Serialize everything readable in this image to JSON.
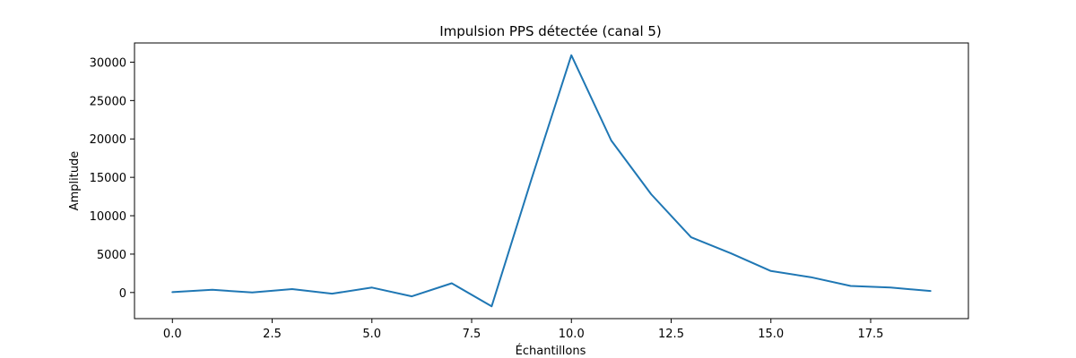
{
  "chart_data": {
    "type": "line",
    "title": "Impulsion PPS détectée (canal 5)",
    "xlabel": "Échantillons",
    "ylabel": "Amplitude",
    "xlim": [
      -0.95,
      19.95
    ],
    "ylim": [
      -3400,
      32500
    ],
    "x_ticks": [
      0.0,
      2.5,
      5.0,
      7.5,
      10.0,
      12.5,
      15.0,
      17.5
    ],
    "x_tick_labels": [
      "0.0",
      "2.5",
      "5.0",
      "7.5",
      "10.0",
      "12.5",
      "15.0",
      "17.5"
    ],
    "y_ticks": [
      0,
      5000,
      10000,
      15000,
      20000,
      25000,
      30000
    ],
    "y_tick_labels": [
      "0",
      "5000",
      "10000",
      "15000",
      "20000",
      "25000",
      "30000"
    ],
    "grid": false,
    "legend": "none",
    "series": [
      {
        "color": "#1f77b4",
        "x": [
          0,
          1,
          2,
          3,
          4,
          5,
          6,
          7,
          8,
          9,
          10,
          11,
          12,
          13,
          14,
          15,
          16,
          17,
          18,
          19
        ],
        "y": [
          50,
          350,
          0,
          450,
          -150,
          650,
          -500,
          1200,
          -1800,
          14800,
          30900,
          19800,
          12800,
          7200,
          5100,
          2800,
          2000,
          850,
          650,
          200
        ]
      }
    ]
  }
}
